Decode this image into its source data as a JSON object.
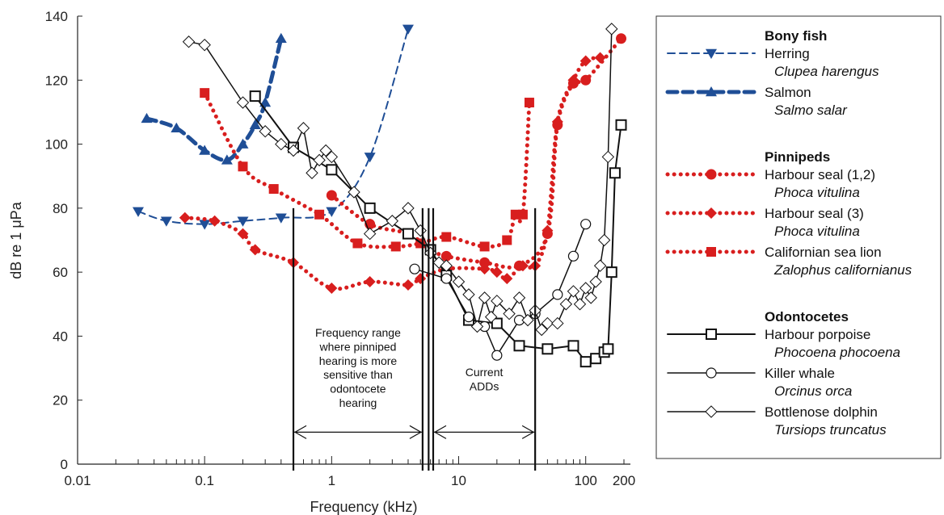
{
  "chart_data": {
    "type": "line",
    "xscale": "log",
    "xlim": [
      0.01,
      200
    ],
    "ylim": [
      0,
      140
    ],
    "xlabel": "Frequency (kHz)",
    "ylabel": "dB re 1 μPa",
    "xticks": [
      0.01,
      0.1,
      1,
      10,
      100,
      200
    ],
    "xtick_labels": [
      "0.01",
      "0.1",
      "1",
      "10",
      "100",
      "200"
    ],
    "yticks": [
      0,
      20,
      40,
      60,
      80,
      100,
      120,
      140
    ],
    "ytick_labels": [
      "0",
      "20",
      "40",
      "60",
      "80",
      "100",
      "120",
      "140"
    ],
    "grid": false,
    "legend_position": "right",
    "groups": [
      {
        "title": "Bony fish",
        "series": [
          "herring",
          "salmon"
        ]
      },
      {
        "title": "Pinnipeds",
        "series": [
          "harbour_seal_12",
          "harbour_seal_3",
          "sea_lion"
        ]
      },
      {
        "title": "Odontocetes",
        "series": [
          "porpoise",
          "killer_whale",
          "dolphin"
        ]
      }
    ],
    "series": [
      {
        "id": "herring",
        "name": "Herring",
        "latin": "Clupea harengus",
        "color": "#1f4e96",
        "style": "dashed",
        "marker": "triangle-down",
        "width": 2,
        "points": [
          [
            0.03,
            79
          ],
          [
            0.05,
            76
          ],
          [
            0.1,
            75
          ],
          [
            0.2,
            76
          ],
          [
            0.4,
            77
          ],
          [
            1,
            79
          ],
          [
            2,
            96
          ],
          [
            4,
            136
          ]
        ]
      },
      {
        "id": "salmon",
        "name": "Salmon",
        "latin": "Salmo salar",
        "color": "#1f4e96",
        "style": "dashed",
        "marker": "triangle-up",
        "width": 5,
        "points": [
          [
            0.035,
            108
          ],
          [
            0.06,
            105
          ],
          [
            0.1,
            98
          ],
          [
            0.15,
            95
          ],
          [
            0.2,
            100
          ],
          [
            0.25,
            106
          ],
          [
            0.3,
            113
          ],
          [
            0.4,
            133
          ]
        ]
      },
      {
        "id": "harbour_seal_12",
        "name": "Harbour seal (1,2)",
        "latin": "Phoca vitulina",
        "color": "#d81e1e",
        "style": "dotted",
        "marker": "circle",
        "width": 5,
        "points": [
          [
            1,
            84
          ],
          [
            2,
            75
          ],
          [
            4,
            72
          ],
          [
            6,
            67
          ],
          [
            8,
            65
          ],
          [
            16,
            63
          ],
          [
            30,
            62
          ],
          [
            50,
            72
          ],
          [
            60,
            106
          ],
          [
            80,
            119
          ],
          [
            100,
            120
          ],
          [
            190,
            133
          ]
        ]
      },
      {
        "id": "harbour_seal_3",
        "name": "Harbour seal (3)",
        "latin": "Phoca vitulina",
        "color": "#d81e1e",
        "style": "dotted",
        "marker": "diamond",
        "width": 5,
        "points": [
          [
            0.07,
            77
          ],
          [
            0.12,
            76
          ],
          [
            0.2,
            72
          ],
          [
            0.25,
            67
          ],
          [
            0.5,
            63
          ],
          [
            1,
            55
          ],
          [
            2,
            57
          ],
          [
            4,
            56
          ],
          [
            5,
            58
          ],
          [
            8,
            61
          ],
          [
            16,
            61
          ],
          [
            20,
            60
          ],
          [
            24,
            58
          ],
          [
            32,
            62
          ],
          [
            40,
            62
          ],
          [
            50,
            73
          ],
          [
            60,
            107
          ],
          [
            80,
            120
          ],
          [
            100,
            126
          ],
          [
            130,
            127
          ]
        ]
      },
      {
        "id": "sea_lion",
        "name": "Californian sea lion",
        "latin": "Zalophus californianus",
        "color": "#d81e1e",
        "style": "dotted",
        "marker": "square",
        "width": 5,
        "points": [
          [
            0.1,
            116
          ],
          [
            0.2,
            93
          ],
          [
            0.35,
            86
          ],
          [
            0.8,
            78
          ],
          [
            1.6,
            69
          ],
          [
            3.2,
            68
          ],
          [
            5,
            69
          ],
          [
            8,
            71
          ],
          [
            16,
            68
          ],
          [
            24,
            70
          ],
          [
            28,
            78
          ],
          [
            32,
            78
          ],
          [
            36,
            113
          ]
        ]
      },
      {
        "id": "porpoise",
        "name": "Harbour porpoise",
        "latin": "Phocoena phocoena",
        "color": "#111111",
        "style": "solid",
        "marker": "square-open",
        "width": 2,
        "points": [
          [
            0.25,
            115
          ],
          [
            0.5,
            99
          ],
          [
            1,
            92
          ],
          [
            2,
            80
          ],
          [
            4,
            72
          ],
          [
            6,
            67
          ],
          [
            8,
            59
          ],
          [
            12,
            45
          ],
          [
            20,
            44
          ],
          [
            30,
            37
          ],
          [
            50,
            36
          ],
          [
            80,
            37
          ],
          [
            100,
            32
          ],
          [
            120,
            33
          ],
          [
            140,
            35
          ],
          [
            150,
            36
          ],
          [
            160,
            60
          ],
          [
            170,
            91
          ],
          [
            190,
            106
          ]
        ]
      },
      {
        "id": "killer_whale",
        "name": "Killer whale",
        "latin": "Orcinus orca",
        "color": "#111111",
        "style": "solid",
        "marker": "circle-open",
        "width": 1.5,
        "points": [
          [
            4.5,
            61
          ],
          [
            8,
            58
          ],
          [
            12,
            46
          ],
          [
            16,
            43
          ],
          [
            20,
            34
          ],
          [
            30,
            45
          ],
          [
            40,
            47
          ],
          [
            60,
            53
          ],
          [
            80,
            65
          ],
          [
            100,
            75
          ]
        ]
      },
      {
        "id": "dolphin",
        "name": "Bottlenose dolphin",
        "latin": "Tursiops truncatus",
        "color": "#111111",
        "style": "solid",
        "marker": "diamond-open",
        "width": 1.5,
        "points": [
          [
            0.075,
            132
          ],
          [
            0.1,
            131
          ],
          [
            0.2,
            113
          ],
          [
            0.3,
            104
          ],
          [
            0.4,
            100
          ],
          [
            0.5,
            98
          ],
          [
            0.6,
            105
          ],
          [
            0.7,
            91
          ],
          [
            0.8,
            95
          ],
          [
            0.9,
            98
          ],
          [
            1,
            96
          ],
          [
            1.5,
            85
          ],
          [
            2,
            72
          ],
          [
            3,
            76
          ],
          [
            4,
            80
          ],
          [
            5,
            73
          ],
          [
            6,
            66
          ],
          [
            7,
            63
          ],
          [
            8,
            62
          ],
          [
            10,
            57
          ],
          [
            12,
            53
          ],
          [
            14,
            43
          ],
          [
            16,
            52
          ],
          [
            18,
            46
          ],
          [
            20,
            51
          ],
          [
            25,
            47
          ],
          [
            30,
            52
          ],
          [
            35,
            45
          ],
          [
            40,
            48
          ],
          [
            45,
            42
          ],
          [
            50,
            44
          ],
          [
            60,
            44
          ],
          [
            70,
            50
          ],
          [
            80,
            54
          ],
          [
            90,
            50
          ],
          [
            100,
            55
          ],
          [
            110,
            52
          ],
          [
            120,
            57
          ],
          [
            130,
            62
          ],
          [
            140,
            70
          ],
          [
            150,
            96
          ],
          [
            160,
            136
          ]
        ]
      }
    ],
    "annotations": {
      "pinniped_range": {
        "text": [
          "Frequency range",
          "where pinniped",
          "hearing is more",
          "sensitive than",
          "odontocete",
          "hearing"
        ],
        "x_range": [
          0.5,
          5.2
        ]
      },
      "current_adds": {
        "text": [
          "Current",
          "ADDs"
        ],
        "x_range": [
          6.3,
          40
        ]
      },
      "vertical_lines_khz": [
        0.5,
        5.2,
        5.8,
        6.3,
        40
      ],
      "arrow_level_db": 10
    }
  }
}
